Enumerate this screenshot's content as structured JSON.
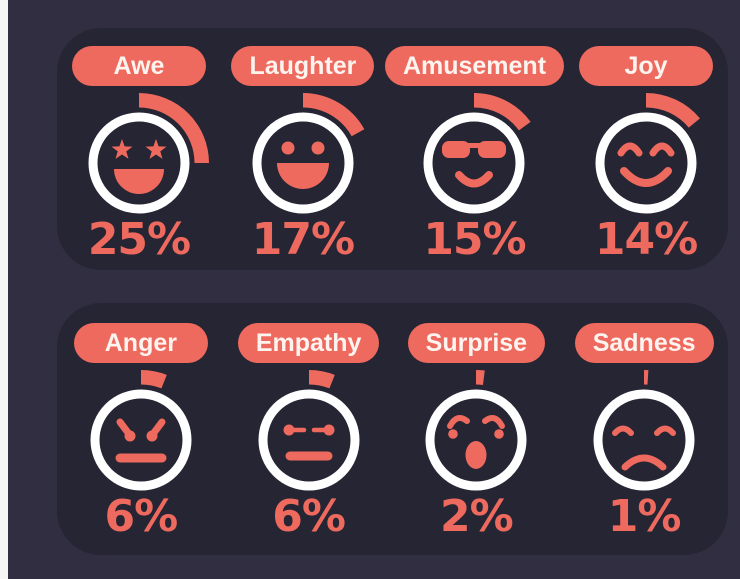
{
  "theme": {
    "background": "#302e40",
    "panel": "#262534",
    "accent": "#ee6a5e",
    "ring": "#ffffff",
    "pill_text": "#fdf3ef",
    "edge_strip": "#f5f5f5"
  },
  "chart_data": {
    "type": "pie",
    "title": "",
    "note": "each emoticon carries a radial gauge arc whose sweep equals its percentage of a full circle",
    "categories": [
      "Awe",
      "Laughter",
      "Amusement",
      "Joy",
      "Anger",
      "Empathy",
      "Surprise",
      "Sadness"
    ],
    "values": [
      25,
      17,
      15,
      14,
      6,
      6,
      2,
      1
    ],
    "unit": "%",
    "legend_position": "none",
    "grid": false
  },
  "rows": [
    {
      "name": "top-emotions",
      "items": [
        {
          "label": "Awe",
          "pct": 25,
          "pct_label": "25%",
          "face": "awe"
        },
        {
          "label": "Laughter",
          "pct": 17,
          "pct_label": "17%",
          "face": "laughter"
        },
        {
          "label": "Amusement",
          "pct": 15,
          "pct_label": "15%",
          "face": "amusement"
        },
        {
          "label": "Joy",
          "pct": 14,
          "pct_label": "14%",
          "face": "joy"
        }
      ]
    },
    {
      "name": "bottom-emotions",
      "items": [
        {
          "label": "Anger",
          "pct": 6,
          "pct_label": "6%",
          "face": "anger"
        },
        {
          "label": "Empathy",
          "pct": 6,
          "pct_label": "6%",
          "face": "empathy"
        },
        {
          "label": "Surprise",
          "pct": 2,
          "pct_label": "2%",
          "face": "surprise"
        },
        {
          "label": "Sadness",
          "pct": 1,
          "pct_label": "1%",
          "face": "sadness"
        }
      ]
    }
  ]
}
